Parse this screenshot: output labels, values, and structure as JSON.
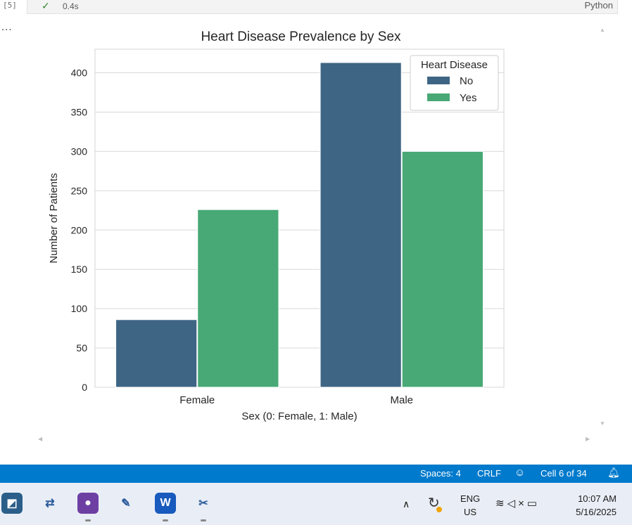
{
  "cell": {
    "exec_count": "[5]",
    "exec_time": "0.4s",
    "language": "Python",
    "output_more": "..."
  },
  "chart_data": {
    "type": "bar",
    "title": "Heart Disease Prevalence by Sex",
    "xlabel": "Sex (0: Female, 1: Male)",
    "ylabel": "Number of Patients",
    "categories": [
      "Female",
      "Male"
    ],
    "series": [
      {
        "name": "No",
        "values": [
          86,
          413
        ],
        "color": "#3e6584"
      },
      {
        "name": "Yes",
        "values": [
          226,
          300
        ],
        "color": "#48a876"
      }
    ],
    "ylim": [
      0,
      430
    ],
    "yticks": [
      0,
      50,
      100,
      150,
      200,
      250,
      300,
      350,
      400
    ],
    "legend_title": "Heart Disease",
    "legend_position": "top-right",
    "grid": true
  },
  "statusbar": {
    "spaces": "Spaces: 4",
    "eol": "CRLF",
    "cell": "Cell 6 of 34",
    "background": "#007acc"
  },
  "taskbar": {
    "apps": [
      {
        "name": "remote-desktop-icon",
        "color": "#2b5f8a",
        "glyph": "◩"
      },
      {
        "name": "sync-app-icon",
        "color": "#e9eef6",
        "glyph": "⇄"
      },
      {
        "name": "github-icon",
        "color": "#6e3fa3",
        "glyph": "●"
      },
      {
        "name": "notes-app-icon",
        "color": "#e9eef6",
        "glyph": "✎"
      },
      {
        "name": "word-icon",
        "color": "#185abd",
        "glyph": "W"
      },
      {
        "name": "snipping-tool-icon",
        "color": "#e9eef6",
        "glyph": "✂"
      }
    ],
    "lang_top": "ENG",
    "lang_bottom": "US",
    "time": "10:07 AM",
    "date": "5/16/2025"
  }
}
